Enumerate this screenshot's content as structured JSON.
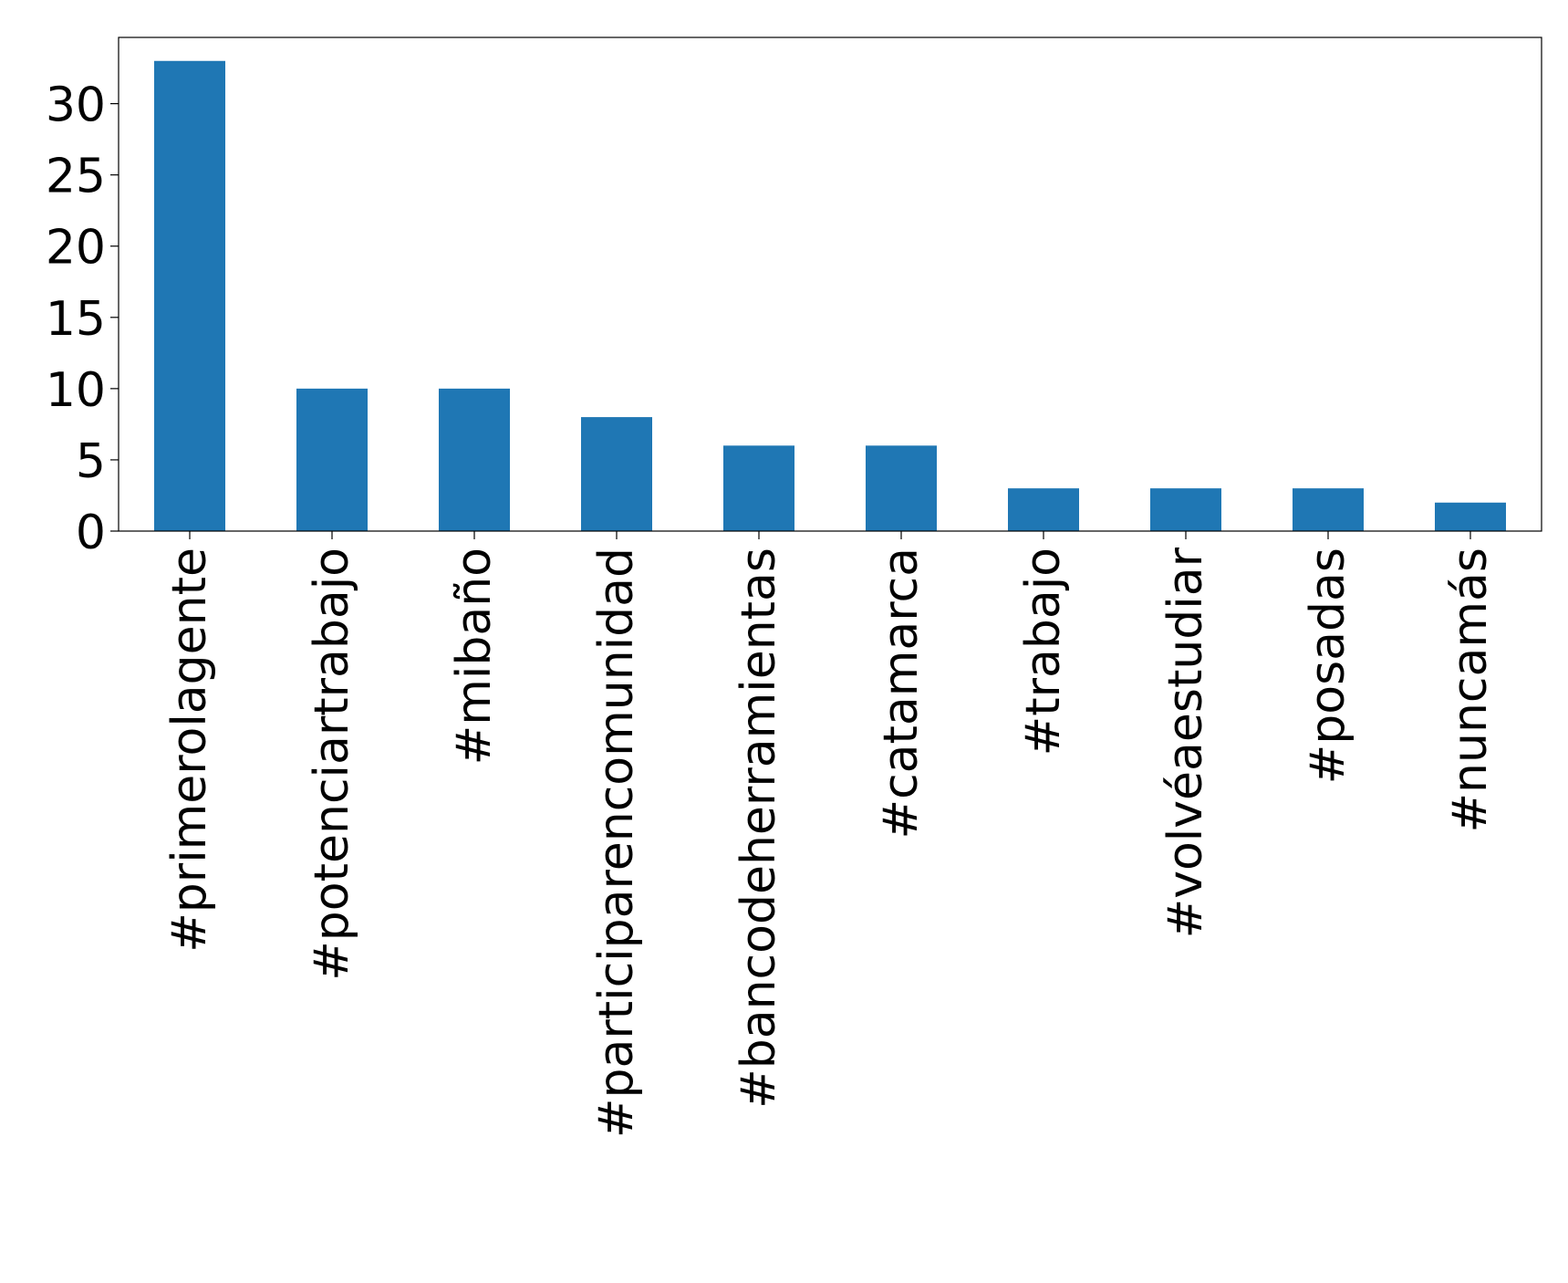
{
  "chart_data": {
    "type": "bar",
    "categories": [
      "#primerolagente",
      "#potenciartrabajo",
      "#mibaño",
      "#participarencomunidad",
      "#bancodeherramientas",
      "#catamarca",
      "#trabajo",
      "#volvéaestudiar",
      "#posadas",
      "#nuncamás"
    ],
    "values": [
      33,
      10,
      10,
      8,
      6,
      6,
      3,
      3,
      3,
      2
    ],
    "ylim": [
      0,
      34.65
    ],
    "yticks": [
      0,
      5,
      10,
      15,
      20,
      25,
      30
    ],
    "ytick_labels": [
      "0",
      "5",
      "10",
      "15",
      "20",
      "25",
      "30"
    ],
    "grid": false,
    "legend": "none",
    "bar_color": "#1f77b4",
    "title": "",
    "xlabel": "",
    "ylabel": ""
  }
}
